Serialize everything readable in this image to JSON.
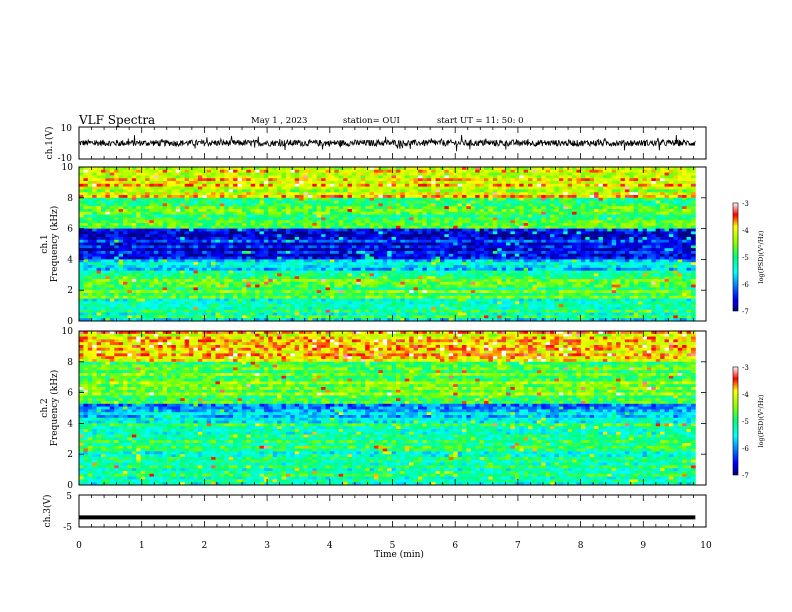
{
  "header": {
    "title": "VLF Spectra",
    "date": "May 1 , 2023",
    "station": "station= OUI",
    "start": "start UT = 11: 50: 0"
  },
  "chart_data": [
    {
      "type": "line",
      "panel": "ch1-waveform",
      "ylabel": "ch.1(V)",
      "ylim": [
        -10,
        10
      ],
      "ytick_labels": [
        "10",
        "-10"
      ],
      "xlim": [
        0,
        10
      ],
      "series": [
        {
          "values_description_note": "",
          "baseline": 0,
          "amplitude_typical": 2,
          "amplitude_max": 6
        }
      ]
    },
    {
      "type": "heatmap",
      "panel": "ch1-spectrogram",
      "ylabel": "ch.1 Frequency (kHz)",
      "ylim": [
        0,
        10
      ],
      "ytick_labels": [
        "0",
        "2",
        "4",
        "6",
        "8",
        "10"
      ],
      "xlim": [
        0,
        9.83
      ],
      "colorbar": {
        "label": "log(PSD)(V²/Hz)",
        "range": [
          -7,
          -3
        ],
        "tick_labels": [
          "-3",
          "-4",
          "-5",
          "-6",
          "-7"
        ]
      },
      "regions": [
        {
          "f": [
            0,
            1.5
          ],
          "level": -5.2
        },
        {
          "f": [
            1.5,
            3
          ],
          "level": -4.8
        },
        {
          "f": [
            3,
            4
          ],
          "level": -5.5
        },
        {
          "f": [
            4,
            6
          ],
          "level": -6.5
        },
        {
          "f": [
            6,
            8
          ],
          "level": -4.8
        },
        {
          "f": [
            8,
            10
          ],
          "level": -4.1
        }
      ]
    },
    {
      "type": "heatmap",
      "panel": "ch2-spectrogram",
      "ylabel": "ch.2 Frequency (kHz)",
      "ylim": [
        0,
        10
      ],
      "ytick_labels": [
        "0",
        "2",
        "4",
        "6",
        "8",
        "10"
      ],
      "xlim": [
        0,
        9.83
      ],
      "colorbar": {
        "label": "log(PSD)(V²/Hz)",
        "range": [
          -7,
          -3
        ],
        "tick_labels": [
          "-3",
          "-4",
          "-5",
          "-6",
          "-7"
        ]
      },
      "regions": [
        {
          "f": [
            0,
            2
          ],
          "level": -5.3
        },
        {
          "f": [
            2,
            4
          ],
          "level": -5.1
        },
        {
          "f": [
            4,
            5.3
          ],
          "level": -5.8
        },
        {
          "f": [
            5.3,
            8
          ],
          "level": -4.7
        },
        {
          "f": [
            8,
            10
          ],
          "level": -3.9
        }
      ]
    },
    {
      "type": "line",
      "panel": "ch3-signal",
      "ylabel": "ch.3(V)",
      "ylim": [
        -5,
        5
      ],
      "ytick_labels": [
        "5",
        "-5"
      ],
      "xlim": [
        0,
        10
      ],
      "series": [
        {
          "constant": -2
        }
      ]
    }
  ],
  "xaxis": {
    "label": "Time (min)",
    "range": [
      0,
      10
    ],
    "tick_labels": [
      "0",
      "1",
      "2",
      "3",
      "4",
      "5",
      "6",
      "7",
      "8",
      "9",
      "10"
    ]
  }
}
